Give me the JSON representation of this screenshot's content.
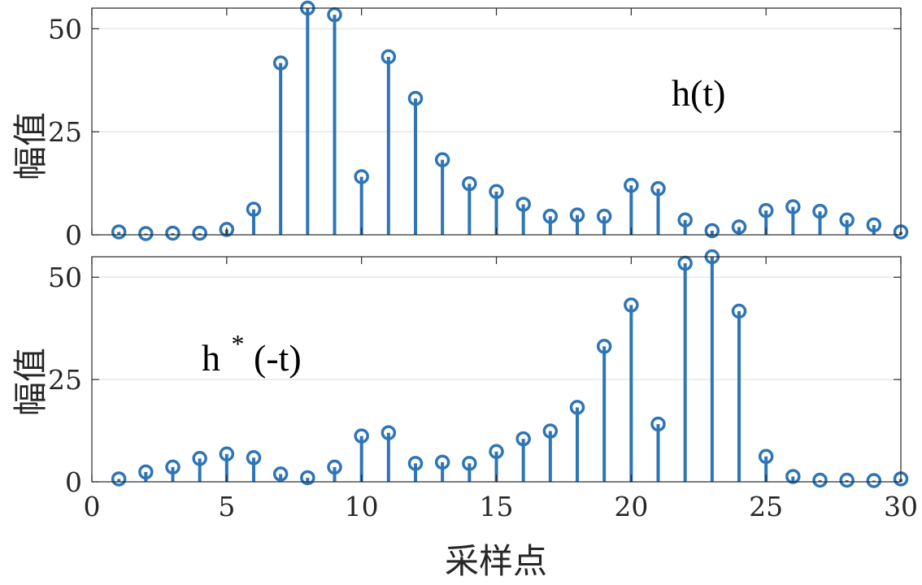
{
  "chart_data": [
    {
      "type": "stem",
      "ylabel": "幅值",
      "xlabel": "",
      "xlim": [
        0,
        30
      ],
      "ylim": [
        0,
        55
      ],
      "yticks": [
        0,
        25,
        50
      ],
      "grid": "horizontal",
      "annotation": {
        "text": "h(t)",
        "superscript": ""
      },
      "color": "#2e75b6",
      "x": [
        1,
        2,
        3,
        4,
        5,
        6,
        7,
        8,
        9,
        10,
        11,
        12,
        13,
        14,
        15,
        16,
        17,
        18,
        19,
        20,
        21,
        22,
        23,
        24,
        25,
        26,
        27,
        28,
        29,
        30
      ],
      "values": [
        0.7,
        0.3,
        0.4,
        0.4,
        1.3,
        6.2,
        41.7,
        55.0,
        53.4,
        14.1,
        43.2,
        33.1,
        18.2,
        12.4,
        10.5,
        7.4,
        4.5,
        4.8,
        4.5,
        12.0,
        11.2,
        3.6,
        1.0,
        1.9,
        5.9,
        6.8,
        5.7,
        3.6,
        2.4,
        0.7
      ]
    },
    {
      "type": "stem",
      "ylabel": "幅值",
      "xlabel": "采样点",
      "xlim": [
        0,
        30
      ],
      "ylim": [
        0,
        55
      ],
      "xticks": [
        0,
        5,
        10,
        15,
        20,
        25,
        30
      ],
      "yticks": [
        0,
        25,
        50
      ],
      "grid": "horizontal",
      "annotation": {
        "text": "h",
        "superscript": "*",
        "suffix": "(-t)"
      },
      "color": "#2e75b6",
      "x": [
        1,
        2,
        3,
        4,
        5,
        6,
        7,
        8,
        9,
        10,
        11,
        12,
        13,
        14,
        15,
        16,
        17,
        18,
        19,
        20,
        21,
        22,
        23,
        24,
        25,
        26,
        27,
        28,
        29,
        30
      ],
      "values": [
        0.7,
        2.4,
        3.6,
        5.7,
        6.8,
        5.9,
        1.9,
        1.0,
        3.6,
        11.2,
        12.0,
        4.5,
        4.8,
        4.5,
        7.4,
        10.5,
        12.4,
        18.2,
        33.1,
        43.2,
        14.1,
        53.4,
        55.0,
        41.7,
        6.2,
        1.3,
        0.4,
        0.4,
        0.3,
        0.7
      ]
    }
  ]
}
